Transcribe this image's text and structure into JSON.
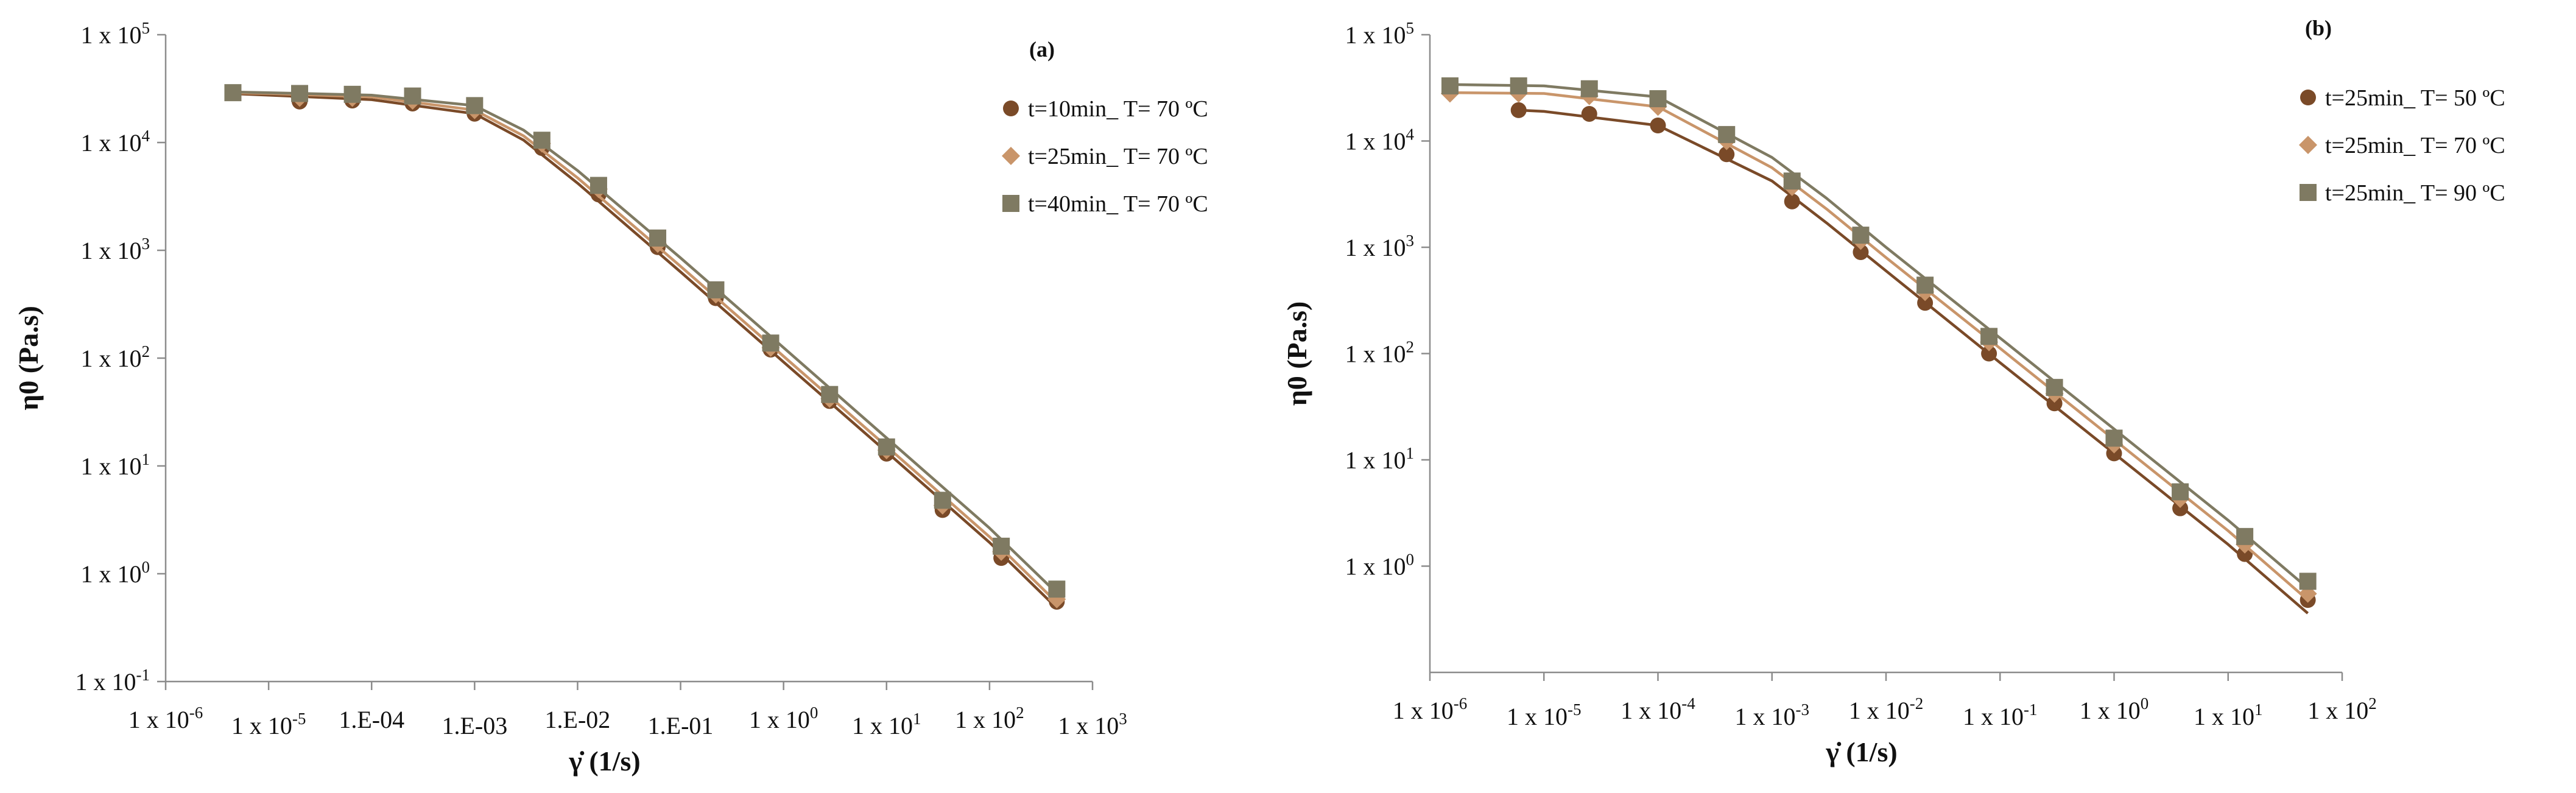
{
  "chart_data": [
    {
      "type": "scatter",
      "panel_label": "(a)",
      "title": "",
      "xlabel": "γ̇  (1/s)",
      "ylabel": "η0  (Pa.s)",
      "xscale": "log",
      "yscale": "log",
      "xlim": [
        1e-06,
        1000
      ],
      "ylim": [
        0.1,
        100000
      ],
      "grid": false,
      "legend_position": "top-right",
      "x_ticks": [
        {
          "value": 1e-06,
          "label": "1 x 10",
          "sup": "-6"
        },
        {
          "value": 1e-05,
          "label": "1 x 10",
          "sup": "-5"
        },
        {
          "value": 0.0001,
          "label": "1.E-04",
          "sup": ""
        },
        {
          "value": 0.001,
          "label": "1.E-03",
          "sup": ""
        },
        {
          "value": 0.01,
          "label": "1.E-02",
          "sup": ""
        },
        {
          "value": 0.1,
          "label": "1.E-01",
          "sup": ""
        },
        {
          "value": 1,
          "label": "1 x 10",
          "sup": "0"
        },
        {
          "value": 10,
          "label": "1 x 10",
          "sup": "1"
        },
        {
          "value": 100,
          "label": "1 x 10",
          "sup": "2"
        },
        {
          "value": 1000,
          "label": "1 x 10",
          "sup": "3"
        }
      ],
      "y_ticks": [
        {
          "value": 0.1,
          "label": "1 x 10",
          "sup": "-1"
        },
        {
          "value": 1,
          "label": "1 x 10",
          "sup": "0"
        },
        {
          "value": 10,
          "label": "1 x 10",
          "sup": "1"
        },
        {
          "value": 100,
          "label": "1 x 10",
          "sup": "2"
        },
        {
          "value": 1000,
          "label": "1 x 10",
          "sup": "3"
        },
        {
          "value": 10000,
          "label": "1 x 10",
          "sup": "4"
        },
        {
          "value": 100000,
          "label": "1 x 10",
          "sup": "5"
        }
      ],
      "series": [
        {
          "name": "t=10min_ T= 70 ºC",
          "marker": "circle",
          "color": "#7a4a28",
          "x": [
            2e-05,
            6.5e-05,
            0.00025,
            0.001,
            0.0045,
            0.016,
            0.06,
            0.22,
            0.75,
            2.8,
            10,
            35,
            130,
            450
          ],
          "y": [
            24000,
            24500,
            23000,
            18500,
            8900,
            3300,
            1070,
            360,
            120,
            40,
            13,
            3.9,
            1.4,
            0.55
          ],
          "fit_x": [
            4e-06,
            1e-05,
            0.0001,
            0.001,
            0.003,
            0.01,
            0.1,
            1,
            10,
            100,
            450
          ],
          "fit_y": [
            28500,
            27500,
            25000,
            18500,
            10500,
            4200,
            630,
            92,
            13.5,
            1.95,
            0.48
          ]
        },
        {
          "name": "t=25min_ T= 70 ºC",
          "marker": "diamond",
          "color": "#c9956a",
          "x": [
            2e-05,
            6.5e-05,
            0.00025,
            0.001,
            0.0045,
            0.016,
            0.06,
            0.22,
            0.75,
            2.8,
            10,
            35,
            130,
            450
          ],
          "y": [
            26000,
            26000,
            24500,
            20000,
            9800,
            3700,
            1150,
            390,
            125,
            42,
            14,
            4.3,
            1.6,
            0.58
          ],
          "fit_x": [
            4e-06,
            1e-05,
            0.0001,
            0.001,
            0.003,
            0.01,
            0.1,
            1,
            10,
            100,
            450
          ],
          "fit_y": [
            29000,
            28500,
            26500,
            20000,
            11500,
            4700,
            710,
            104,
            15.2,
            2.2,
            0.54
          ]
        },
        {
          "name": "t=40min_ T= 70 ºC",
          "marker": "square",
          "color": "#7f7a62",
          "x": [
            4.5e-06,
            2e-05,
            6.5e-05,
            0.00025,
            0.001,
            0.0045,
            0.016,
            0.06,
            0.22,
            0.75,
            2.8,
            10,
            35,
            130,
            450
          ],
          "y": [
            29000,
            28500,
            28000,
            27000,
            22000,
            10500,
            4000,
            1300,
            430,
            138,
            46,
            15,
            4.8,
            1.8,
            0.72
          ],
          "fit_x": [
            4e-06,
            1e-05,
            0.0001,
            0.001,
            0.003,
            0.01,
            0.1,
            1,
            10,
            100,
            450
          ],
          "fit_y": [
            29500,
            29000,
            27500,
            22000,
            13000,
            5500,
            850,
            125,
            18.2,
            2.65,
            0.66
          ]
        }
      ]
    },
    {
      "type": "scatter",
      "panel_label": "(b)",
      "title": "",
      "xlabel": "γ̇  (1/s)",
      "ylabel": "η0  (Pa.s)",
      "xscale": "log",
      "yscale": "log",
      "xlim": [
        1e-06,
        100
      ],
      "ylim": [
        0.1,
        100000
      ],
      "grid": false,
      "legend_position": "top-right",
      "x_ticks": [
        {
          "value": 1e-06,
          "label": "1 x 10",
          "sup": "-6"
        },
        {
          "value": 1e-05,
          "label": "1 x 10",
          "sup": "-5"
        },
        {
          "value": 0.0001,
          "label": "1 x 10",
          "sup": "-4"
        },
        {
          "value": 0.001,
          "label": "1 x 10",
          "sup": "-3"
        },
        {
          "value": 0.01,
          "label": "1 x 10",
          "sup": "-2"
        },
        {
          "value": 0.1,
          "label": "1 x 10",
          "sup": "-1"
        },
        {
          "value": 1,
          "label": "1 x 10",
          "sup": "0"
        },
        {
          "value": 10,
          "label": "1 x 10",
          "sup": "1"
        },
        {
          "value": 100,
          "label": "1 x 10",
          "sup": "2"
        }
      ],
      "y_ticks": [
        {
          "value": 1,
          "label": "1 x 10",
          "sup": "0"
        },
        {
          "value": 10,
          "label": "1 x 10",
          "sup": "1"
        },
        {
          "value": 100,
          "label": "1 x 10",
          "sup": "2"
        },
        {
          "value": 1000,
          "label": "1 x 10",
          "sup": "3"
        },
        {
          "value": 10000,
          "label": "1 x 10",
          "sup": "4"
        },
        {
          "value": 100000,
          "label": "1 x 10",
          "sup": "5"
        }
      ],
      "series": [
        {
          "name": "t=25min_ T= 50 ºC",
          "marker": "circle",
          "color": "#7a4a28",
          "x": [
            6e-06,
            2.5e-05,
            0.0001,
            0.0004,
            0.0015,
            0.006,
            0.022,
            0.08,
            0.3,
            1,
            3.8,
            14,
            50
          ],
          "y": [
            19500,
            18000,
            14000,
            7500,
            2700,
            900,
            300,
            100,
            34,
            11.5,
            3.5,
            1.3,
            0.48
          ],
          "fit_x": [
            6e-06,
            1e-05,
            0.0001,
            0.001,
            0.003,
            0.01,
            0.1,
            1,
            10,
            50
          ],
          "fit_y": [
            19500,
            19000,
            14000,
            4200,
            1700,
            600,
            82,
            11.5,
            1.6,
            0.36
          ]
        },
        {
          "name": "t=25min_ T= 70 ºC",
          "marker": "diamond",
          "color": "#c9956a",
          "x": [
            1.5e-06,
            6e-06,
            2.5e-05,
            0.0001,
            0.0004,
            0.0015,
            0.006,
            0.022,
            0.08,
            0.3,
            1,
            3.8,
            14,
            50
          ],
          "y": [
            28000,
            28000,
            26500,
            21000,
            10000,
            3700,
            1150,
            380,
            128,
            42,
            14,
            4.3,
            1.6,
            0.55
          ],
          "fit_x": [
            1.5e-06,
            1e-05,
            0.0001,
            0.001,
            0.003,
            0.01,
            0.1,
            1,
            10,
            50
          ],
          "fit_y": [
            28500,
            28000,
            21000,
            5600,
            2300,
            800,
            112,
            15.5,
            2.15,
            0.48
          ]
        },
        {
          "name": "t=25min_ T= 90 ºC",
          "marker": "square",
          "color": "#7f7a62",
          "x": [
            1.5e-06,
            6e-06,
            2.5e-05,
            0.0001,
            0.0004,
            0.0015,
            0.006,
            0.022,
            0.08,
            0.3,
            1,
            3.8,
            14,
            50
          ],
          "y": [
            33000,
            33000,
            31000,
            25000,
            11500,
            4200,
            1300,
            440,
            145,
            48,
            16,
            5,
            1.9,
            0.72
          ],
          "fit_x": [
            1.5e-06,
            1e-05,
            0.0001,
            0.001,
            0.003,
            0.01,
            0.1,
            1,
            10,
            50
          ],
          "fit_y": [
            34000,
            33000,
            26000,
            7000,
            2900,
            1000,
            140,
            19.5,
            2.7,
            0.62
          ]
        }
      ]
    }
  ]
}
